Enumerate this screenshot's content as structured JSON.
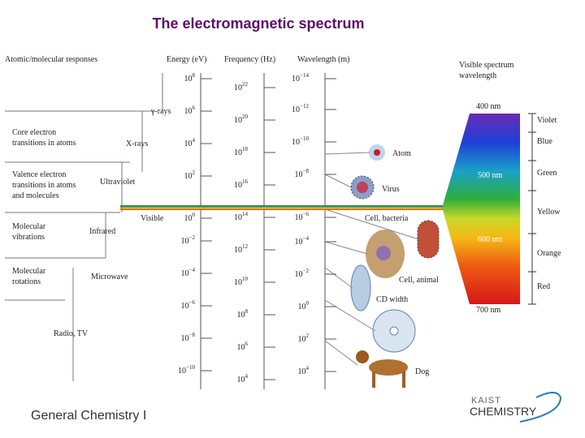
{
  "title": "The electromagnetic spectrum",
  "headers": {
    "responses": "Atomic/molecular responses",
    "energy": "Energy (eV)",
    "frequency": "Frequency (Hz)",
    "wavelength": "Wavelength (m)",
    "visible": [
      "Visible spectrum",
      "wavelength"
    ]
  },
  "energy_ticks": [
    {
      "base": "10",
      "exp": "8"
    },
    {
      "base": "10",
      "exp": "6"
    },
    {
      "base": "10",
      "exp": "4"
    },
    {
      "base": "10",
      "exp": "2"
    },
    {
      "base": "10",
      "exp": "0"
    },
    {
      "base": "10",
      "exp": "−2"
    },
    {
      "base": "10",
      "exp": "−4"
    },
    {
      "base": "10",
      "exp": "−6"
    },
    {
      "base": "10",
      "exp": "−8"
    },
    {
      "base": "10",
      "exp": "−10"
    }
  ],
  "frequency_ticks": [
    {
      "base": "10",
      "exp": "22"
    },
    {
      "base": "10",
      "exp": "20"
    },
    {
      "base": "10",
      "exp": "18"
    },
    {
      "base": "10",
      "exp": "16"
    },
    {
      "base": "10",
      "exp": "14"
    },
    {
      "base": "10",
      "exp": "12"
    },
    {
      "base": "10",
      "exp": "10"
    },
    {
      "base": "10",
      "exp": "8"
    },
    {
      "base": "10",
      "exp": "6"
    },
    {
      "base": "10",
      "exp": "4"
    }
  ],
  "wavelength_ticks": [
    {
      "base": "10",
      "exp": "−14"
    },
    {
      "base": "10",
      "exp": "−12"
    },
    {
      "base": "10",
      "exp": "−10"
    },
    {
      "base": "10",
      "exp": "−8"
    },
    {
      "base": "10",
      "exp": "−6"
    },
    {
      "base": "10",
      "exp": "−4"
    },
    {
      "base": "10",
      "exp": "−2"
    },
    {
      "base": "10",
      "exp": "0"
    },
    {
      "base": "10",
      "exp": "2"
    },
    {
      "base": "10",
      "exp": "4"
    }
  ],
  "regions": [
    "γ-rays",
    "X-rays",
    "Ultraviolet",
    "Visible",
    "Infrared",
    "Microwave",
    "Radio, TV"
  ],
  "responses": [
    [
      "Core electron",
      "transitions in atoms"
    ],
    [
      "Valence electron",
      "transitions in atoms",
      "and molecules"
    ],
    [
      "Molecular",
      "vibrations"
    ],
    [
      "Molecular",
      "rotations"
    ]
  ],
  "objects": [
    "Atom",
    "Virus",
    "Cell, bacteria",
    "Cell, animal",
    "CD width",
    "Dog"
  ],
  "visible_wavelengths": [
    "400 nm",
    "500 nm",
    "600 nm",
    "700 nm"
  ],
  "colors": [
    "Violet",
    "Blue",
    "Green",
    "Yellow",
    "Orange",
    "Red"
  ],
  "footer": {
    "course": "General Chemistry I",
    "logo_top": "KAIST",
    "logo_bottom": "CHEMISTRY"
  }
}
